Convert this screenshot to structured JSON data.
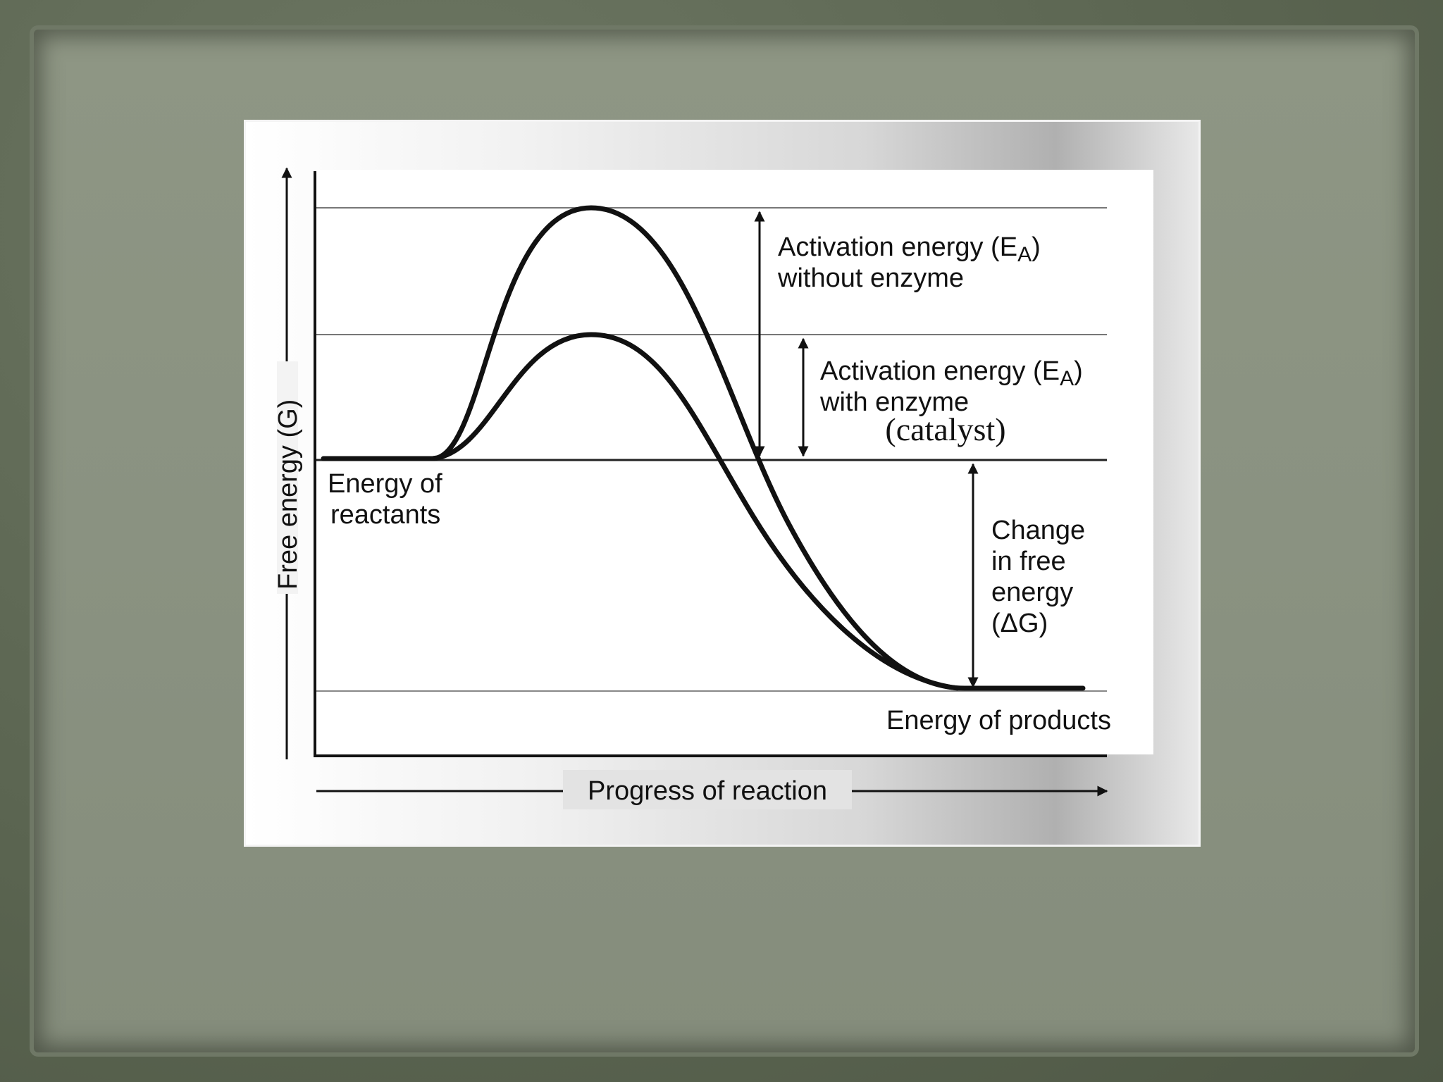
{
  "diagram": {
    "y_axis_label": "Free energy (G)",
    "x_axis_label": "Progress of reaction",
    "reactants_label_line1": "Energy of",
    "reactants_label_line2": "reactants",
    "products_label": "Energy of products",
    "ea_without_line1": "Activation energy (E",
    "ea_without_sub": "A",
    "ea_without_close": ")",
    "ea_without_line2": "without enzyme",
    "ea_with_line1": "Activation energy (E",
    "ea_with_sub": "A",
    "ea_with_close": ")",
    "ea_with_line2": "with enzyme",
    "catalyst_note": "(catalyst)",
    "delta_g_line1": "Change",
    "delta_g_line2": "in free",
    "delta_g_line3": "energy",
    "delta_g_line4": "(ΔG)"
  }
}
